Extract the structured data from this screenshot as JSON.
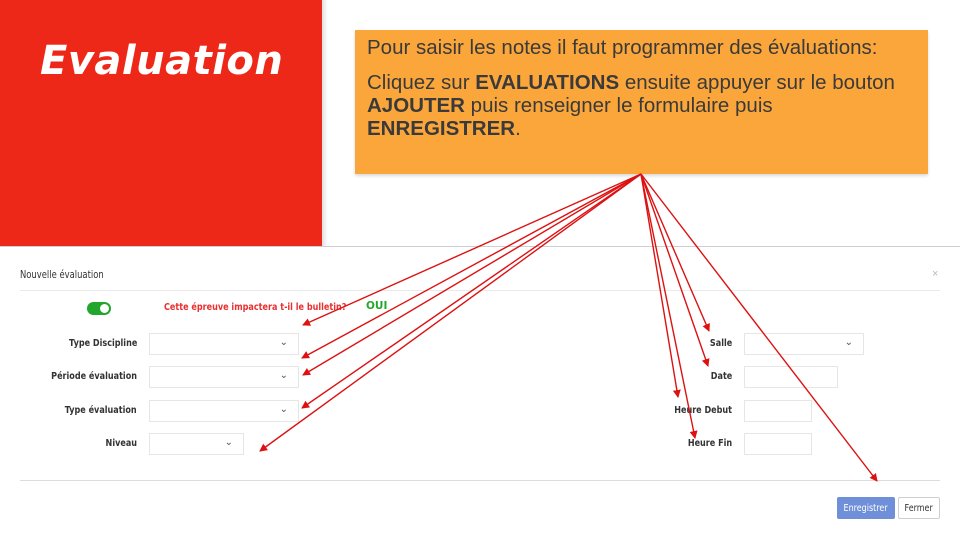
{
  "slide": {
    "title": "Evaluation"
  },
  "callout": {
    "line1": "Pour saisir les notes il faut programmer des évaluations:",
    "line2_prefix": "Cliquez sur ",
    "line2_bold1": "EVALUATIONS",
    "line2_mid1": " ensuite appuyer sur le bouton ",
    "line2_bold2": "AJOUTER",
    "line2_mid2": " puis renseigner le formulaire puis ",
    "line2_bold3": "ENREGISTRER",
    "line2_end": "."
  },
  "modal": {
    "title": "Nouvelle évaluation",
    "close": "×",
    "question": "Cette épreuve impactera t-il le bulletin?",
    "answer": "OUI",
    "left_fields": [
      {
        "label": "Type Discipline"
      },
      {
        "label": "Période évaluation"
      },
      {
        "label": "Type évaluation"
      },
      {
        "label": "Niveau"
      }
    ],
    "right_fields": [
      {
        "label": "Salle"
      },
      {
        "label": "Date"
      },
      {
        "label": "Heure Debut"
      },
      {
        "label": "Heure Fin"
      }
    ],
    "save_label": "Enregistrer",
    "close_label": "Fermer"
  },
  "icons": {
    "toggle": "toggle-on-icon",
    "chevron": "chevron-down-icon"
  },
  "colors": {
    "red_panel": "#ee2818",
    "callout_bg": "#fba63a",
    "toggle_green": "#22a62b",
    "question_red": "#e83030",
    "save_blue": "#6f8fd8",
    "arrow_red": "#dd1111"
  }
}
